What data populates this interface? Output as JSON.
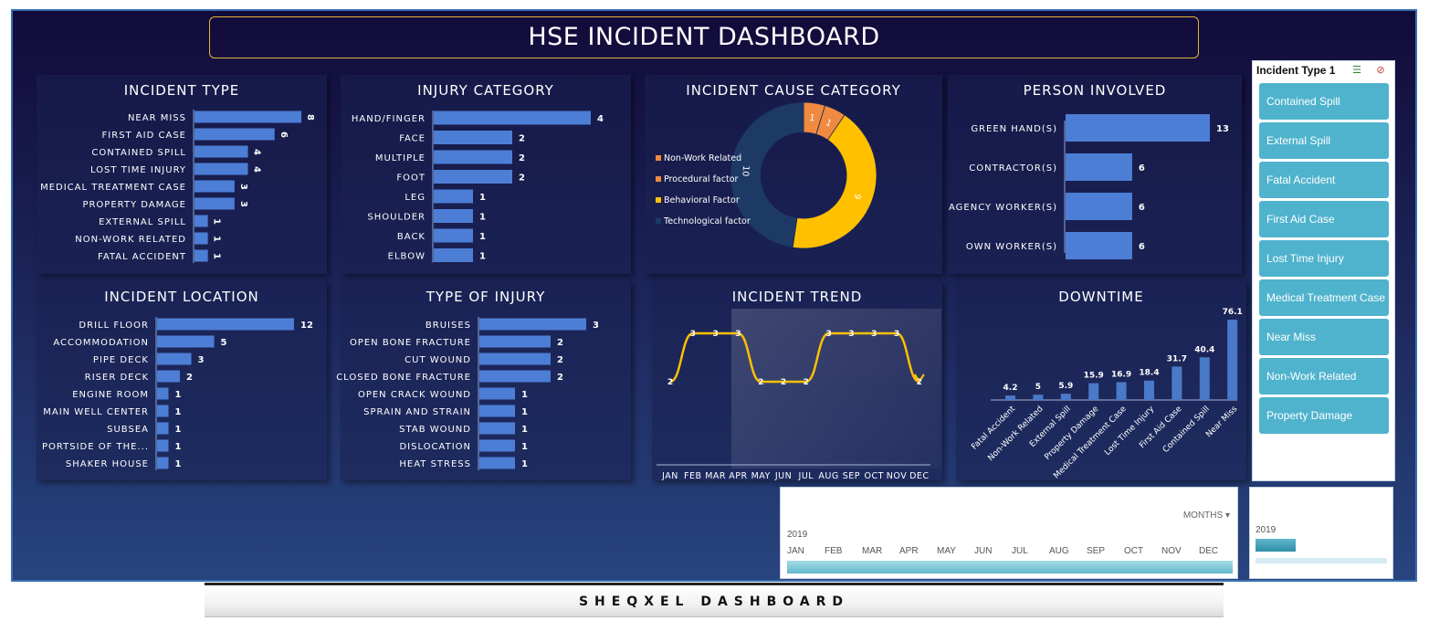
{
  "title": "HSE INCIDENT DASHBOARD",
  "footer": "SHEQXEL DASHBOARD",
  "colors": {
    "bar": "#4d7ed6",
    "donut_orange": "#f08a40",
    "donut_yellow": "#ffc000",
    "donut_navy": "#1d3a66",
    "trend_line": "#ffc000",
    "slicer": "#4fb3cd"
  },
  "slicer": {
    "title": "Incident Type 1",
    "multi_select_icon": "multi-select-icon",
    "clear_filter_icon": "clear-filter-icon",
    "items": [
      "Contained Spill",
      "External Spill",
      "Fatal Accident",
      "First Aid Case",
      "Lost Time Injury",
      "Medical Treatment Case",
      "Near Miss",
      "Non-Work Related",
      "Property Damage"
    ]
  },
  "timeline": {
    "level": "MONTHS",
    "year": "2019",
    "months": [
      "JAN",
      "FEB",
      "MAR",
      "APR",
      "MAY",
      "JUN",
      "JUL",
      "AUG",
      "SEP",
      "OCT",
      "NOV",
      "DEC"
    ]
  },
  "timeline2": {
    "year": "2019"
  },
  "chart_data": [
    {
      "id": "incident_type",
      "type": "bar",
      "orientation": "horizontal",
      "title": "INCIDENT TYPE",
      "categories": [
        "NEAR MISS",
        "FIRST AID CASE",
        "CONTAINED SPILL",
        "LOST TIME INJURY",
        "MEDICAL TREATMENT CASE",
        "PROPERTY DAMAGE",
        "EXTERNAL SPILL",
        "NON-WORK RELATED",
        "FATAL ACCIDENT"
      ],
      "values": [
        8,
        6,
        4,
        4,
        3,
        3,
        1,
        1,
        1
      ]
    },
    {
      "id": "injury_category",
      "type": "bar",
      "orientation": "horizontal",
      "title": "INJURY CATEGORY",
      "categories": [
        "HAND/FINGER",
        "FACE",
        "MULTIPLE",
        "FOOT",
        "LEG",
        "SHOULDER",
        "BACK",
        "ELBOW"
      ],
      "values": [
        4,
        2,
        2,
        2,
        1,
        1,
        1,
        1
      ]
    },
    {
      "id": "incident_cause",
      "type": "pie",
      "title": "INCIDENT CAUSE CATEGORY",
      "categories": [
        "Non-Work Related",
        "Procedural factor",
        "Behavioral Factor",
        "Technological factor"
      ],
      "values": [
        1,
        1,
        9,
        10
      ],
      "legend": "left"
    },
    {
      "id": "person_involved",
      "type": "bar",
      "orientation": "horizontal",
      "title": "PERSON INVOLVED",
      "categories": [
        "GREEN HAND(S)",
        "CONTRACTOR(S)",
        "AGENCY WORKER(S)",
        "OWN WORKER(S)"
      ],
      "values": [
        13,
        6,
        6,
        6
      ]
    },
    {
      "id": "incident_location",
      "type": "bar",
      "orientation": "horizontal",
      "title": "INCIDENT LOCATION",
      "categories": [
        "DRILL FLOOR",
        "ACCOMMODATION",
        "PIPE DECK",
        "RISER DECK",
        "ENGINE ROOM",
        "MAIN WELL CENTER",
        "SUBSEA",
        "PORTSIDE OF THE...",
        "SHAKER HOUSE"
      ],
      "values": [
        12,
        5,
        3,
        2,
        1,
        1,
        1,
        1,
        1
      ]
    },
    {
      "id": "type_of_injury",
      "type": "bar",
      "orientation": "horizontal",
      "title": "TYPE OF INJURY",
      "categories": [
        "BRUISES",
        "OPEN BONE FRACTURE",
        "CUT WOUND",
        "CLOSED BONE FRACTURE",
        "OPEN CRACK WOUND",
        "SPRAIN AND STRAIN",
        "STAB WOUND",
        "DISLOCATION",
        "HEAT STRESS"
      ],
      "values": [
        3,
        2,
        2,
        2,
        1,
        1,
        1,
        1,
        1
      ]
    },
    {
      "id": "incident_trend",
      "type": "line",
      "title": "INCIDENT TREND",
      "categories": [
        "JAN",
        "FEB",
        "MAR",
        "APR",
        "MAY",
        "JUN",
        "JUL",
        "AUG",
        "SEP",
        "OCT",
        "NOV",
        "DEC"
      ],
      "values": [
        2,
        3,
        3,
        3,
        2,
        2,
        2,
        3,
        3,
        3,
        3,
        2
      ]
    },
    {
      "id": "downtime",
      "type": "bar",
      "orientation": "vertical",
      "title": "DOWNTIME",
      "categories": [
        "Fatal Accident",
        "Non-Work Related",
        "External Spill",
        "Property Damage",
        "Medical Treatment Case",
        "Lost Time Injury",
        "First Aid Case",
        "Contained Spill",
        "Near Miss"
      ],
      "values": [
        4.2,
        5,
        5.9,
        15.9,
        16.9,
        18.4,
        31.7,
        40.4,
        76.1
      ]
    }
  ]
}
